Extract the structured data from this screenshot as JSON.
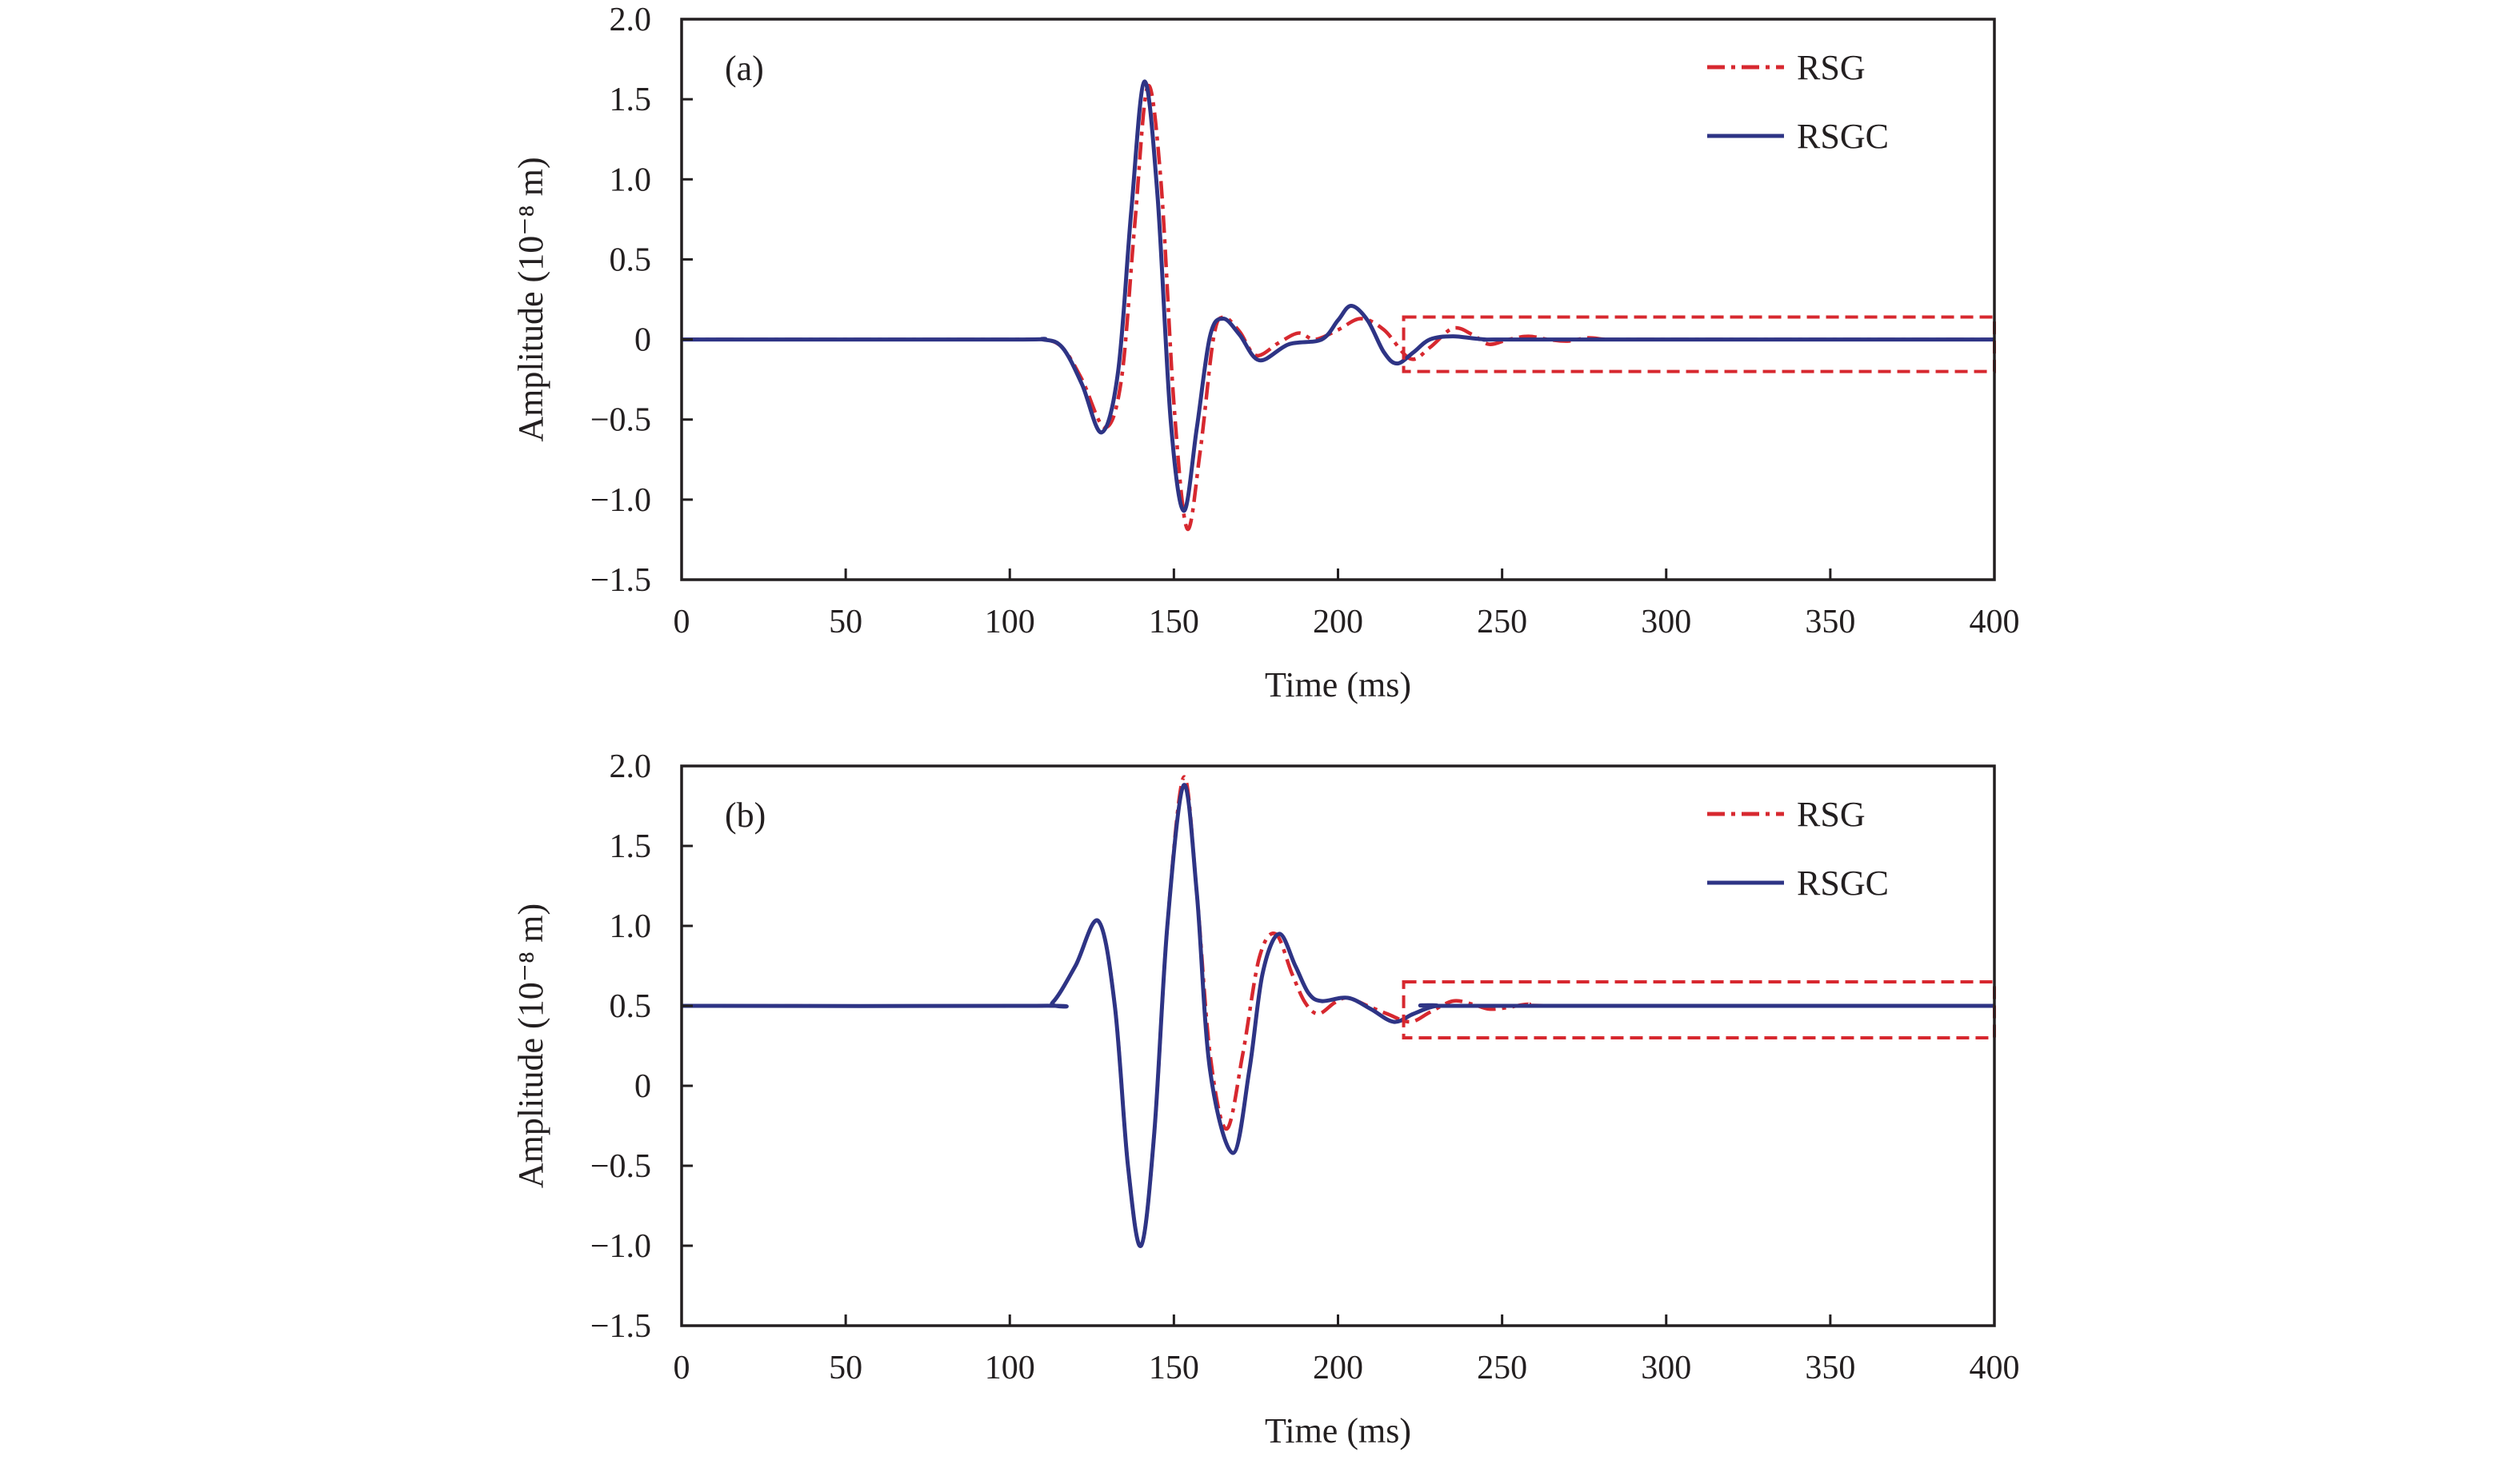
{
  "colors": {
    "RSG": "#d7282f",
    "RSGC": "#2e3485",
    "axis": "#231f20",
    "box": "#d7282f"
  },
  "chart_data": [
    {
      "type": "line",
      "panel_label": "(a)",
      "xlabel": "Time (ms)",
      "ylabel": "Amplitude (10⁻⁸ m)",
      "xlim": [
        0,
        400
      ],
      "ylim": [
        -1.5,
        2.0
      ],
      "xticks": [
        "0",
        "50",
        "100",
        "150",
        "200",
        "250",
        "300",
        "350",
        "400"
      ],
      "yticks": [
        "2.0",
        "1.5",
        "1.0",
        "0.5",
        "0",
        "−0.5",
        "−1.0",
        "−1.5"
      ],
      "grid": false,
      "legend_position": "top-right",
      "highlight_box": {
        "x": [
          220,
          400
        ],
        "y": [
          -0.2,
          0.14
        ],
        "style": "dashed"
      },
      "series": [
        {
          "name": "RSG",
          "style": "dash-dot",
          "x": [
            0,
            100,
            110,
            116,
            122,
            129,
            134,
            138,
            142,
            146,
            150,
            154,
            158,
            162,
            165,
            170,
            175,
            182,
            188,
            193,
            200,
            207,
            214,
            222,
            228,
            235,
            241,
            246,
            252,
            258,
            264,
            270,
            276,
            282,
            290,
            400
          ],
          "y": [
            0,
            0,
            0,
            -0.05,
            -0.25,
            -0.55,
            -0.25,
            0.7,
            1.58,
            1.0,
            -0.4,
            -1.18,
            -0.7,
            0.0,
            0.14,
            0.05,
            -0.1,
            -0.02,
            0.04,
            0.0,
            0.06,
            0.13,
            0.06,
            -0.12,
            -0.05,
            0.07,
            0.03,
            -0.03,
            0.0,
            0.02,
            0.0,
            -0.01,
            0.01,
            0.0,
            0.0,
            0.0
          ]
        },
        {
          "name": "RSGC",
          "style": "solid",
          "x": [
            0,
            100,
            110,
            116,
            122,
            128,
            133,
            137,
            141,
            145,
            149,
            153,
            157,
            161,
            165,
            170,
            176,
            185,
            195,
            200,
            204,
            209,
            214,
            218,
            223,
            228,
            235,
            245,
            260,
            400
          ],
          "y": [
            0,
            0,
            0,
            -0.05,
            -0.28,
            -0.58,
            -0.2,
            0.8,
            1.61,
            0.9,
            -0.5,
            -1.07,
            -0.55,
            0.02,
            0.13,
            0.03,
            -0.13,
            -0.03,
            0.0,
            0.12,
            0.21,
            0.12,
            -0.08,
            -0.15,
            -0.08,
            0.0,
            0.02,
            0.0,
            0.0,
            0.0
          ]
        }
      ]
    },
    {
      "type": "line",
      "panel_label": "(b)",
      "xlabel": "Time (ms)",
      "ylabel": "Amplitude (10⁻⁸ m)",
      "xlim": [
        0,
        400
      ],
      "ylim": [
        -1.5,
        2.0
      ],
      "xticks": [
        "0",
        "50",
        "100",
        "150",
        "200",
        "250",
        "300",
        "350",
        "400"
      ],
      "yticks": [
        "2.0",
        "1.5",
        "1.0",
        "0.5",
        "0",
        "−0.5",
        "−1.0",
        "−1.5"
      ],
      "grid": false,
      "legend_position": "top-right",
      "highlight_box": {
        "x": [
          220,
          400
        ],
        "y": [
          0.3,
          0.65
        ],
        "style": "dashed"
      },
      "series": [
        {
          "name": "RSG",
          "style": "dash-dot",
          "x": [
            0,
            108,
            113,
            120,
            127,
            132,
            136,
            140,
            144,
            148,
            153,
            157,
            161,
            166,
            171,
            176,
            181,
            186,
            190,
            194,
            199,
            203,
            209,
            215,
            222,
            228,
            235,
            241,
            246,
            252,
            258,
            270,
            400
          ],
          "y": [
            0.5,
            0.5,
            0.52,
            0.75,
            1.03,
            0.5,
            -0.5,
            -1.0,
            -0.3,
            1.0,
            1.93,
            1.2,
            0.2,
            -0.27,
            0.2,
            0.8,
            0.95,
            0.7,
            0.52,
            0.45,
            0.52,
            0.55,
            0.5,
            0.45,
            0.4,
            0.46,
            0.53,
            0.51,
            0.48,
            0.49,
            0.51,
            0.5,
            0.5
          ]
        },
        {
          "name": "RSGC",
          "style": "solid",
          "x": [
            0,
            108,
            113,
            120,
            127,
            132,
            136,
            140,
            144,
            148,
            153,
            157,
            161,
            168,
            173,
            177,
            182,
            187,
            191,
            195,
            203,
            210,
            217,
            223,
            230,
            240,
            400
          ],
          "y": [
            0.5,
            0.5,
            0.52,
            0.75,
            1.03,
            0.5,
            -0.5,
            -1.0,
            -0.3,
            1.0,
            1.88,
            1.2,
            0.1,
            -0.42,
            0.1,
            0.7,
            0.95,
            0.75,
            0.58,
            0.53,
            0.55,
            0.48,
            0.4,
            0.45,
            0.5,
            0.5,
            0.5
          ]
        }
      ]
    }
  ]
}
